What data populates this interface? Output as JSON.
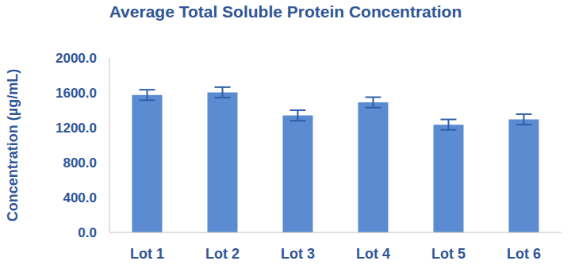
{
  "chart_data": {
    "type": "bar",
    "title": "Average Total Soluble Protein Concentration",
    "y_label": "Concentration (µg/mL)",
    "categories": [
      "Lot 1",
      "Lot 2",
      "Lot 3",
      "Lot 4",
      "Lot 5",
      "Lot 6"
    ],
    "values": [
      1575,
      1605,
      1340,
      1490,
      1235,
      1295
    ],
    "errors": [
      60,
      60,
      60,
      60,
      60,
      60
    ],
    "color": "#5b8bd0",
    "ylim": [
      0,
      2000
    ],
    "yticks": [
      {
        "value": 0,
        "label": "0.0"
      },
      {
        "value": 400,
        "label": "400.0"
      },
      {
        "value": 800,
        "label": "800.0"
      },
      {
        "value": 1200,
        "label": "1200.0"
      },
      {
        "value": 1600,
        "label": "1600.0"
      },
      {
        "value": 2000,
        "label": "2000.0"
      }
    ],
    "grid": false
  }
}
